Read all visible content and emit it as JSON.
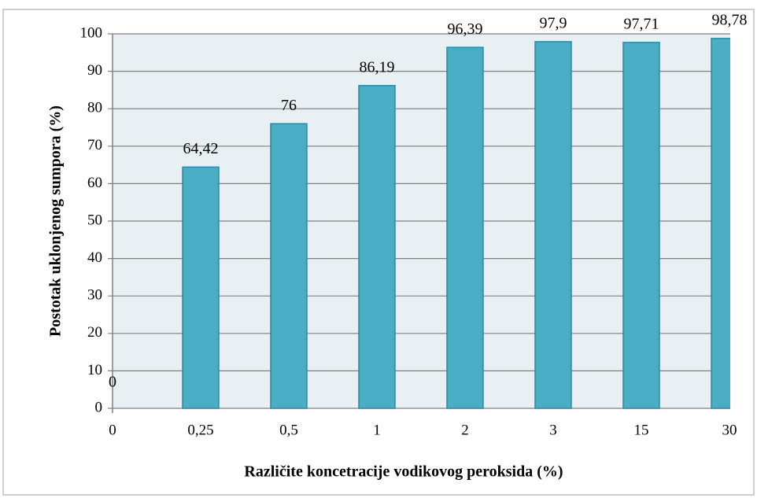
{
  "chart_data": {
    "type": "bar",
    "x_label": "Različite koncetracije vodikovog peroksida (%)",
    "y_label": "Postotak uklonjenog sumpora (%)",
    "categories": [
      "0",
      "0,25",
      "0,5",
      "1",
      "2",
      "3",
      "15",
      "30"
    ],
    "values": [
      0,
      64.42,
      76,
      86.19,
      96.39,
      97.9,
      97.71,
      98.78
    ],
    "value_labels": [
      "0",
      "64,42",
      "76",
      "86,19",
      "96,39",
      "97,9",
      "97,71",
      "98,78"
    ],
    "color": "#4bacc6",
    "ylim": [
      0,
      100
    ],
    "yticks": [
      0,
      10,
      20,
      30,
      40,
      50,
      60,
      70,
      80,
      90,
      100
    ],
    "grid": true
  }
}
